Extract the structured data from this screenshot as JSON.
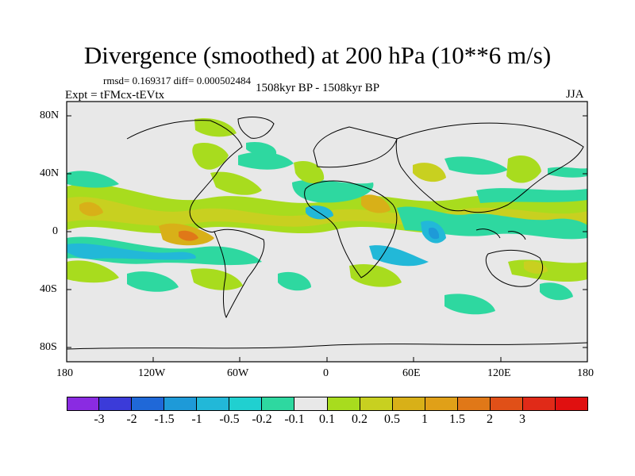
{
  "title": "Divergence (smoothed) at 200 hPa (10**6 m/s)",
  "rmsd_text": "rmsd= 0.169317 diff= 0.000502484",
  "expt_text": "Expt = tFMcx-tEVtx",
  "period_text": "1508kyr BP - 1508kyr BP",
  "season_text": "JJA",
  "lat_labels": [
    "80N",
    "40N",
    "0",
    "40S",
    "80S"
  ],
  "lon_labels": [
    "180",
    "120W",
    "60W",
    "0",
    "60E",
    "120E",
    "180"
  ],
  "colorbar": {
    "colors": [
      "#8a2be2",
      "#3b3bd9",
      "#1f68d8",
      "#1e9ad8",
      "#22b8d8",
      "#20d0d0",
      "#2ed8a0",
      "#e8e8e8",
      "#a8dc1e",
      "#c8d020",
      "#d8b018",
      "#e0a018",
      "#e07818",
      "#e05018",
      "#e02a18",
      "#e01010"
    ],
    "labels": [
      "-3",
      "-2",
      "-1.5",
      "-1",
      "-0.5",
      "-0.2",
      "-0.1",
      "0.1",
      "0.2",
      "0.5",
      "1",
      "1.5",
      "2",
      "3"
    ]
  },
  "colors": {
    "background": "#e8e8e8",
    "coast": "#000000"
  }
}
